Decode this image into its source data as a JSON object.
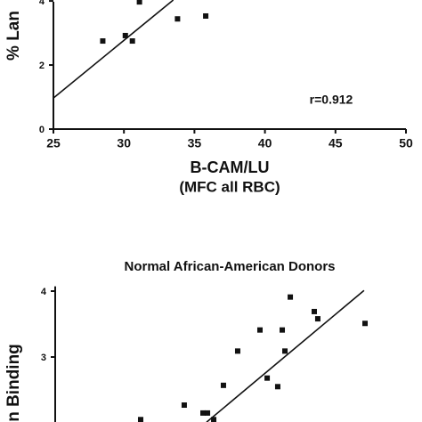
{
  "chart_data": [
    {
      "type": "scatter",
      "y_label": "% Lan",
      "x_label": "B-CAM/LU",
      "x_label_2": "(MFC all RBC)",
      "annotation": "r=0.912",
      "x": [
        28.5,
        30.1,
        30.6,
        31.1,
        33.8,
        35.8
      ],
      "y": [
        2.75,
        2.92,
        2.75,
        3.97,
        3.44,
        3.53
      ],
      "fit_line": {
        "x": [
          25,
          33.5
        ],
        "y": [
          0.97,
          4.03
        ]
      },
      "xlim": [
        25,
        50
      ],
      "xticks": [
        25,
        30,
        35,
        40,
        45,
        50
      ],
      "ylim": [
        0,
        4.03
      ],
      "yticks": [
        0,
        2,
        4
      ],
      "color": "#111111"
    },
    {
      "type": "scatter",
      "title": "Normal African-American Donors",
      "y_label": "n Binding",
      "x": [
        31.06,
        34.15,
        35.48,
        35.8,
        36.24,
        36.93,
        37.94,
        40.03,
        39.52,
        40.78,
        41.1,
        41.29,
        41.67,
        43.37,
        43.62,
        46.97
      ],
      "y": [
        2.05,
        2.27,
        2.15,
        2.15,
        2.05,
        2.57,
        3.09,
        2.68,
        3.41,
        2.55,
        3.41,
        3.09,
        3.91,
        3.69,
        3.58,
        3.51
      ],
      "fit_line": {
        "x": [
          35.73,
          46.9
        ],
        "y": [
          2.01,
          4.01
        ]
      },
      "xlim": [
        25,
        50
      ],
      "ylim": [
        2,
        4.1
      ],
      "yticks": [
        3,
        4
      ],
      "color": "#111111"
    }
  ]
}
